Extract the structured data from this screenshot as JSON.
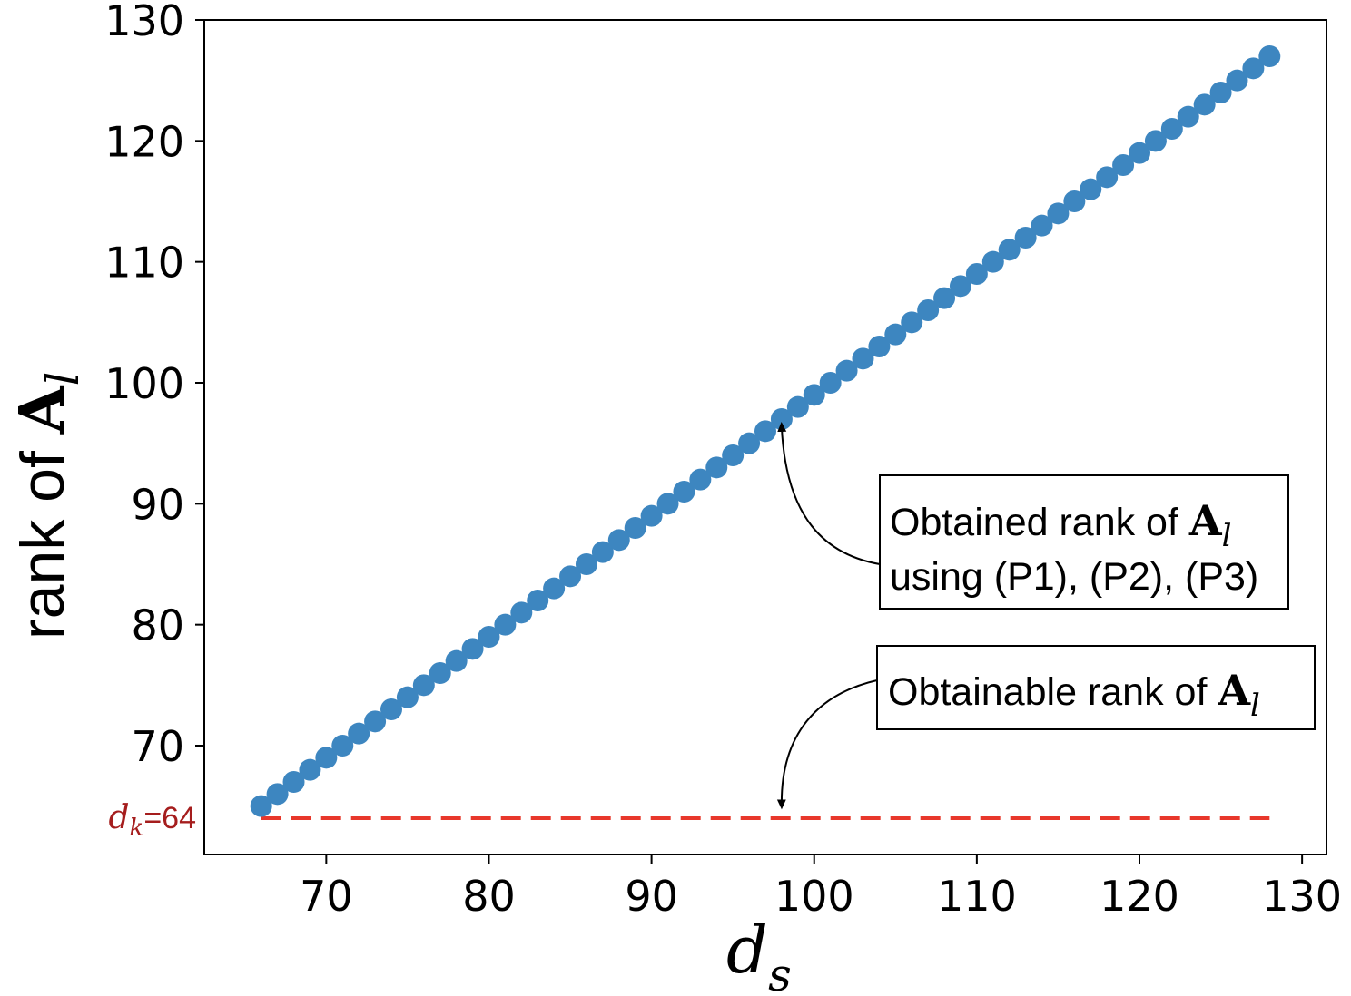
{
  "chart_data": {
    "type": "scatter",
    "xlabel": {
      "main": "d",
      "sub": "s"
    },
    "ylabel": {
      "prefix": "rank of ",
      "math": "A",
      "sub": "l"
    },
    "xlim": [
      62.5,
      131.5
    ],
    "ylim": [
      61,
      130
    ],
    "xticks": [
      70,
      80,
      90,
      100,
      110,
      120,
      130
    ],
    "yticks": [
      70,
      80,
      90,
      100,
      110,
      120,
      130
    ],
    "series": [
      {
        "name": "Obtained rank",
        "color": "#3d86c0",
        "x_start": 66,
        "x_end": 128,
        "y_offset": -1
      }
    ],
    "reference_line": {
      "y": 64,
      "x_range": [
        66,
        128
      ],
      "color": "#e8372b",
      "style": "dashed",
      "label_var": "d",
      "label_sub": "k",
      "label_value": "=64",
      "label_color": "#a51d1d"
    },
    "annotations": [
      {
        "id": "obtained",
        "lines": [
          "Obtained rank of ",
          "using (P1), (P2), (P3)"
        ],
        "math": "A",
        "sub": "l",
        "arrow_target": {
          "x": 98,
          "y": 96.4
        }
      },
      {
        "id": "obtainable",
        "lines": [
          "Obtainable rank of "
        ],
        "math": "A",
        "sub": "l",
        "arrow_target": {
          "x": 98,
          "y": 65.1
        }
      }
    ]
  }
}
